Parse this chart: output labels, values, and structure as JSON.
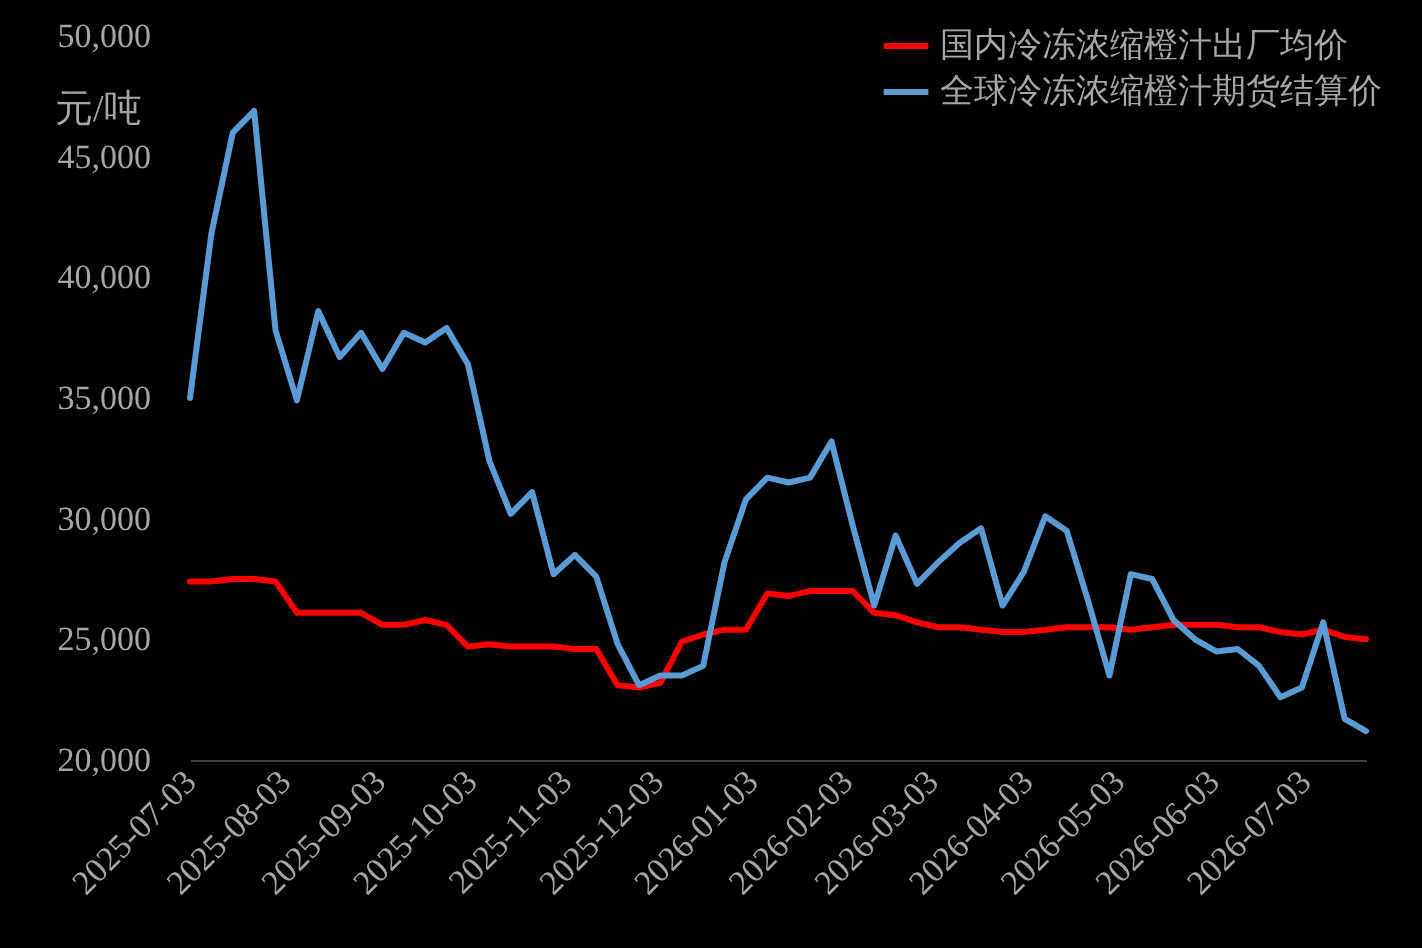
{
  "chart_data": {
    "type": "line",
    "ylabel": "元/吨",
    "legend": "top right",
    "grid": false,
    "line_style": "solid",
    "marker": "none",
    "x": [
      "2025-07-03",
      "2025-07-10",
      "2025-07-17",
      "2025-07-24",
      "2025-07-31",
      "2025-08-07",
      "2025-08-14",
      "2025-08-21",
      "2025-08-28",
      "2025-09-04",
      "2025-09-11",
      "2025-09-18",
      "2025-09-25",
      "2025-10-02",
      "2025-10-09",
      "2025-10-16",
      "2025-10-23",
      "2025-10-30",
      "2025-11-06",
      "2025-11-13",
      "2025-11-20",
      "2025-11-27",
      "2025-12-04",
      "2025-12-11",
      "2025-12-18",
      "2025-12-25",
      "2026-01-01",
      "2026-01-08",
      "2026-01-15",
      "2026-01-22",
      "2026-01-29",
      "2026-02-05",
      "2026-02-12",
      "2026-02-19",
      "2026-02-26",
      "2026-03-05",
      "2026-03-12",
      "2026-03-19",
      "2026-03-26",
      "2026-04-02",
      "2026-04-09",
      "2026-04-16",
      "2026-04-23",
      "2026-04-30",
      "2026-05-07",
      "2026-05-14",
      "2026-05-21",
      "2026-05-28",
      "2026-06-04",
      "2026-06-11",
      "2026-06-18",
      "2026-06-25",
      "2026-07-02",
      "2026-07-09",
      "2026-07-16",
      "2026-07-23"
    ],
    "series": [
      {
        "name": "国内冷冻浓缩橙汁出厂均价",
        "color": "#ff0000",
        "values": [
          27400,
          27400,
          27500,
          27500,
          27400,
          26100,
          26100,
          26100,
          26100,
          25600,
          25600,
          25800,
          25600,
          24700,
          24800,
          24700,
          24700,
          24700,
          24600,
          24600,
          23100,
          23000,
          23200,
          24900,
          25200,
          25400,
          25400,
          26900,
          26800,
          27000,
          27000,
          27000,
          26100,
          26000,
          25700,
          25500,
          25500,
          25400,
          25300,
          25300,
          25400,
          25500,
          25500,
          25500,
          25400,
          25500,
          25600,
          25600,
          25600,
          25500,
          25500,
          25300,
          25200,
          25400,
          25100,
          25000
        ]
      },
      {
        "name": "全球冷冻浓缩橙汁期货结算价",
        "color": "#5b9bd5",
        "values": [
          35000,
          41800,
          46000,
          46900,
          37800,
          34900,
          38600,
          36700,
          37700,
          36200,
          37700,
          37300,
          37900,
          36400,
          32400,
          30200,
          31100,
          27700,
          28500,
          27600,
          24800,
          23100,
          23500,
          23500,
          23900,
          28200,
          30800,
          31700,
          31500,
          31700,
          33200,
          29700,
          26400,
          29300,
          27300,
          28200,
          29000,
          29600,
          26400,
          27800,
          30100,
          29500,
          26600,
          23500,
          27700,
          27500,
          25800,
          25000,
          24500,
          24600,
          23900,
          22600,
          23000,
          25700,
          21700,
          21200
        ]
      }
    ],
    "xticks": [
      {
        "value": "2025-07-03",
        "label": "2025-07-03"
      },
      {
        "value": "2025-08-03",
        "label": "2025-08-03"
      },
      {
        "value": "2025-09-03",
        "label": "2025-09-03"
      },
      {
        "value": "2025-10-03",
        "label": "2025-10-03"
      },
      {
        "value": "2025-11-03",
        "label": "2025-11-03"
      },
      {
        "value": "2025-12-03",
        "label": "2025-12-03"
      },
      {
        "value": "2026-01-03",
        "label": "2026-01-03"
      },
      {
        "value": "2026-02-03",
        "label": "2026-02-03"
      },
      {
        "value": "2026-03-03",
        "label": "2026-03-03"
      },
      {
        "value": "2026-04-03",
        "label": "2026-04-03"
      },
      {
        "value": "2026-05-03",
        "label": "2026-05-03"
      },
      {
        "value": "2026-06-03",
        "label": "2026-06-03"
      },
      {
        "value": "2026-07-03",
        "label": "2026-07-03"
      }
    ],
    "xlim": [
      "2025-07-03",
      "2026-07-23"
    ],
    "ylim": [
      20000,
      50000
    ],
    "yticks": [
      {
        "value": 20000,
        "label": "20,000"
      },
      {
        "value": 25000,
        "label": "25,000"
      },
      {
        "value": 30000,
        "label": "30,000"
      },
      {
        "value": 35000,
        "label": "35,000"
      },
      {
        "value": 40000,
        "label": "40,000"
      },
      {
        "value": 45000,
        "label": "45,000"
      },
      {
        "value": 50000,
        "label": "50,000"
      }
    ]
  }
}
